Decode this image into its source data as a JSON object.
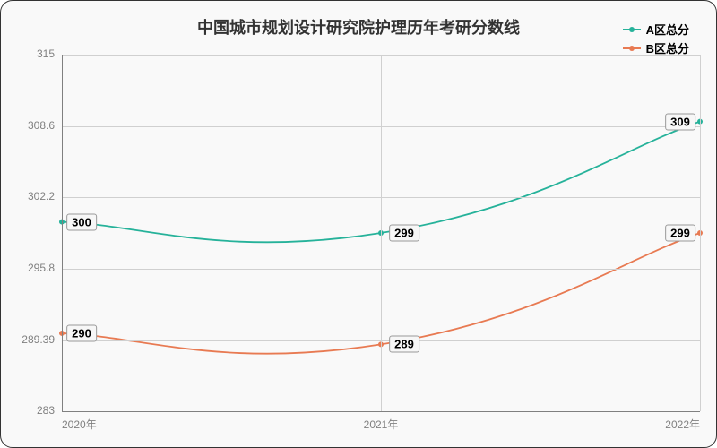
{
  "chart": {
    "type": "line",
    "title": "中国城市规划设计研究院护理历年考研分数线",
    "title_fontsize": 18,
    "title_color": "#333333",
    "background_color": "#f9f9f9",
    "plot_bg": "#f9f9f9",
    "border_color": "#333333",
    "grid_color": "#d0d0d0",
    "axis_color": "#808080",
    "label_color": "#808080",
    "label_fontsize": 12,
    "data_label_fontsize": 13,
    "data_label_bg": "#f7f7f7",
    "data_label_border": "#999999",
    "x": {
      "categories": [
        "2020年",
        "2021年",
        "2022年"
      ]
    },
    "y": {
      "min": 283,
      "max": 315,
      "ticks": [
        283,
        289.39,
        295.8,
        302.2,
        308.6,
        315
      ]
    },
    "legend": {
      "position": "top-right",
      "fontsize": 13
    },
    "series": [
      {
        "name": "A区总分",
        "color": "#26b29a",
        "line_width": 1.8,
        "marker_radius": 3,
        "values": [
          300,
          299,
          309
        ]
      },
      {
        "name": "B区总分",
        "color": "#e87a52",
        "line_width": 1.8,
        "marker_radius": 3,
        "values": [
          290,
          289,
          299
        ]
      }
    ]
  }
}
